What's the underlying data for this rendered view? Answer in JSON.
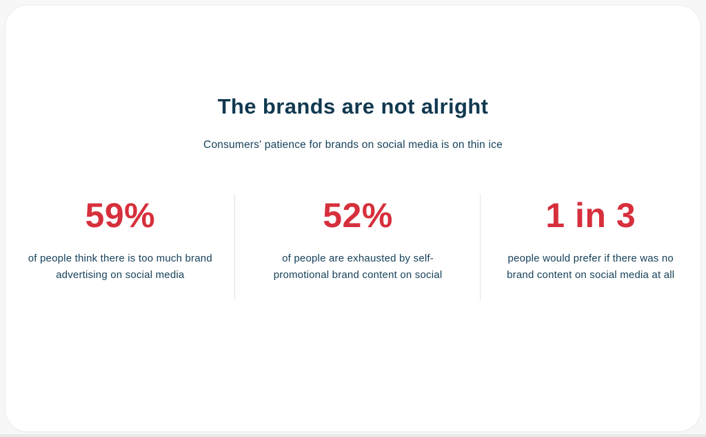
{
  "header": {
    "title": "The brands are not alright",
    "subtitle": "Consumers' patience for brands on social media is on thin ice"
  },
  "stats": [
    {
      "value": "59%",
      "lines": [
        "of people think there is too much brand",
        "advertising on social media"
      ]
    },
    {
      "value": "52%",
      "lines": [
        "of people are exhausted by self-",
        "promotional brand content on social"
      ]
    },
    {
      "value": "1 in 3",
      "lines": [
        "people would prefer if there was no",
        "brand content on social media at all"
      ]
    }
  ],
  "colors": {
    "accent_red": "#d6303c",
    "navy_text": "#113950",
    "card_background": "#ffffff",
    "page_background": "#f7f7f7",
    "divider": "#e3e3e3"
  }
}
